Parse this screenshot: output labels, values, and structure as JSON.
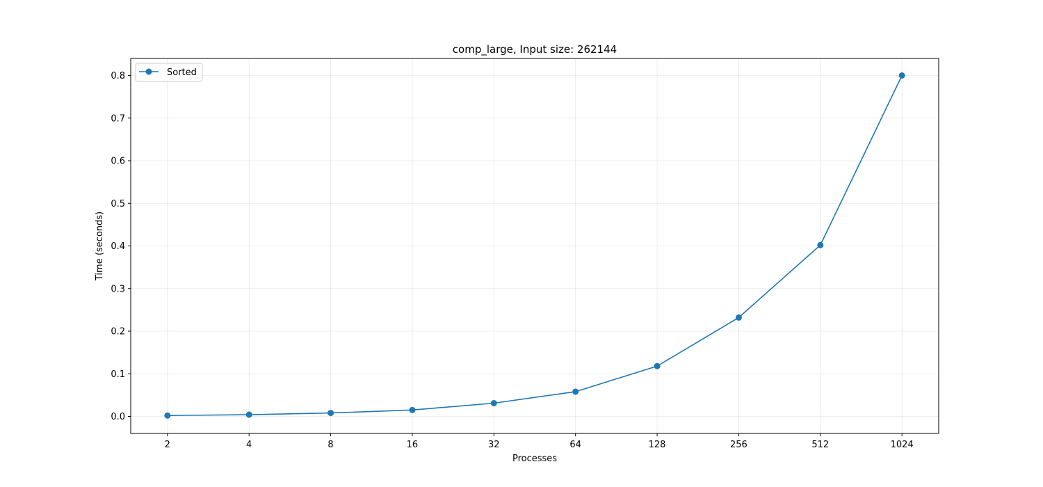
{
  "chart_data": {
    "type": "line",
    "title": "comp_large, Input size: 262144",
    "xlabel": "Processes",
    "ylabel": "Time (seconds)",
    "categories": [
      "2",
      "4",
      "8",
      "16",
      "32",
      "64",
      "128",
      "256",
      "512",
      "1024"
    ],
    "x_scale": "log2",
    "ylim": [
      -0.04,
      0.84
    ],
    "yticks": [
      0.0,
      0.1,
      0.2,
      0.3,
      0.4,
      0.5,
      0.6,
      0.7,
      0.8
    ],
    "ytick_labels": [
      "0.0",
      "0.1",
      "0.2",
      "0.3",
      "0.4",
      "0.5",
      "0.6",
      "0.7",
      "0.8"
    ],
    "grid": true,
    "legend_position": "upper-left",
    "series": [
      {
        "name": "Sorted",
        "color": "#1f77b4",
        "marker": "circle",
        "values": [
          0.002,
          0.004,
          0.008,
          0.015,
          0.031,
          0.058,
          0.118,
          0.232,
          0.402,
          0.8
        ]
      }
    ]
  }
}
